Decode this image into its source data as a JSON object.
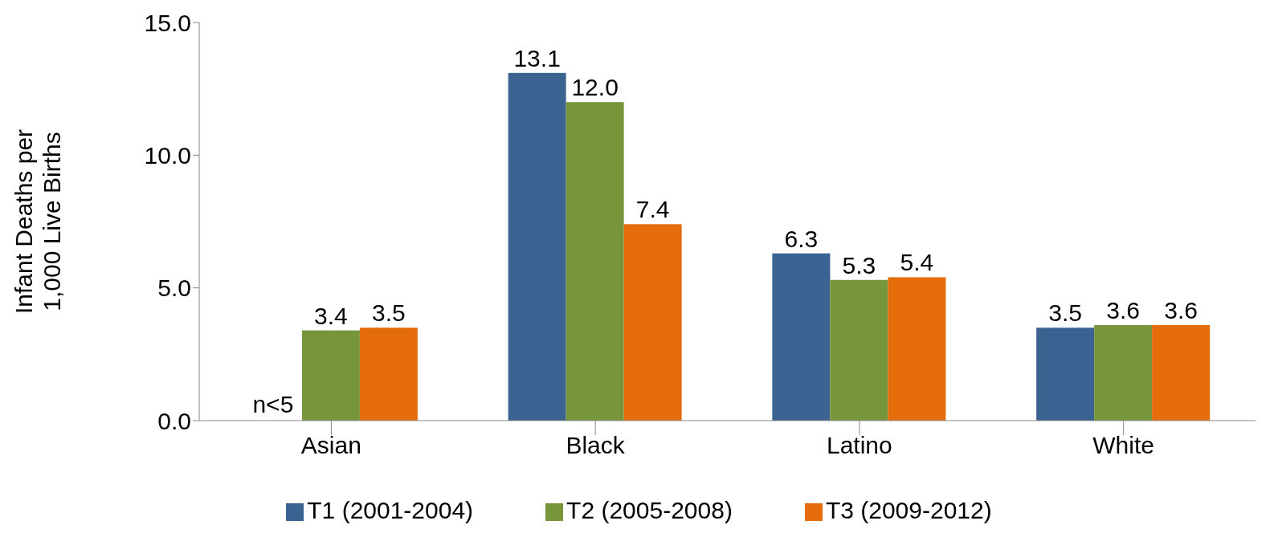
{
  "chart_data": {
    "type": "bar",
    "ylabel": "Infant Deaths per 1,000 Live Births",
    "categories": [
      "Asian",
      "Black",
      "Latino",
      "White"
    ],
    "series": [
      {
        "name": "T1 (2001-2004)",
        "color": "#3a6391",
        "values": [
          null,
          13.1,
          6.3,
          3.5
        ],
        "value_labels": [
          "n<5",
          "13.1",
          "6.3",
          "3.5"
        ]
      },
      {
        "name": "T2 (2005-2008)",
        "color": "#77963c",
        "values": [
          3.4,
          12.0,
          5.3,
          3.6
        ],
        "value_labels": [
          "3.4",
          "12.0",
          "5.3",
          "3.6"
        ]
      },
      {
        "name": "T3 (2009-2012)",
        "color": "#e46c0a",
        "values": [
          3.5,
          7.4,
          5.4,
          3.6
        ],
        "value_labels": [
          "3.5",
          "7.4",
          "5.4",
          "3.6"
        ]
      }
    ],
    "ylim": [
      0,
      15
    ],
    "yticks": [
      {
        "value": 0,
        "label": "0.0"
      },
      {
        "value": 5,
        "label": "5.0"
      },
      {
        "value": 10,
        "label": "10.0"
      },
      {
        "value": 15,
        "label": "15.0"
      }
    ],
    "grid": false,
    "legend": "bottom"
  }
}
